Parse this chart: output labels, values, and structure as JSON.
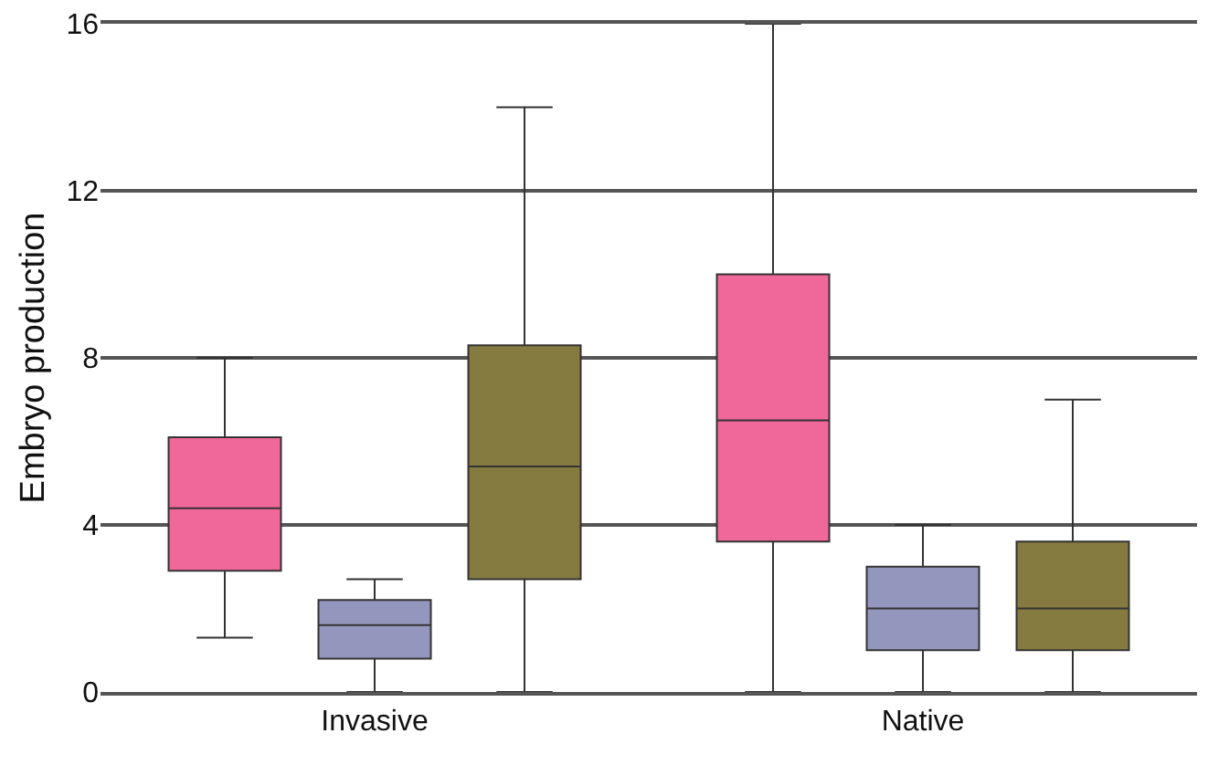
{
  "chart_data": {
    "type": "box",
    "ylabel": "Embryo production",
    "categories": [
      "Invasive",
      "Native"
    ],
    "ylim": [
      0,
      16
    ],
    "yticks": [
      0,
      4,
      8,
      12,
      16
    ],
    "grid": "y",
    "series": [
      {
        "color": "#f0679a",
        "boxes": [
          {
            "low": 1.3,
            "q1": 2.9,
            "median": 4.4,
            "q3": 6.1,
            "high": 8
          },
          {
            "low": 0,
            "q1": 3.6,
            "median": 6.5,
            "q3": 10,
            "high": 16
          }
        ]
      },
      {
        "color": "#9497bd",
        "boxes": [
          {
            "low": 0,
            "q1": 0.8,
            "median": 1.6,
            "q3": 2.2,
            "high": 2.7
          },
          {
            "low": 0,
            "q1": 1,
            "median": 2,
            "q3": 3,
            "high": 4
          }
        ]
      },
      {
        "color": "#857a40",
        "boxes": [
          {
            "low": 0,
            "q1": 2.7,
            "median": 5.4,
            "q3": 8.3,
            "high": 14
          },
          {
            "low": 0,
            "q1": 1,
            "median": 2,
            "q3": 3.6,
            "high": 7
          }
        ]
      }
    ]
  }
}
